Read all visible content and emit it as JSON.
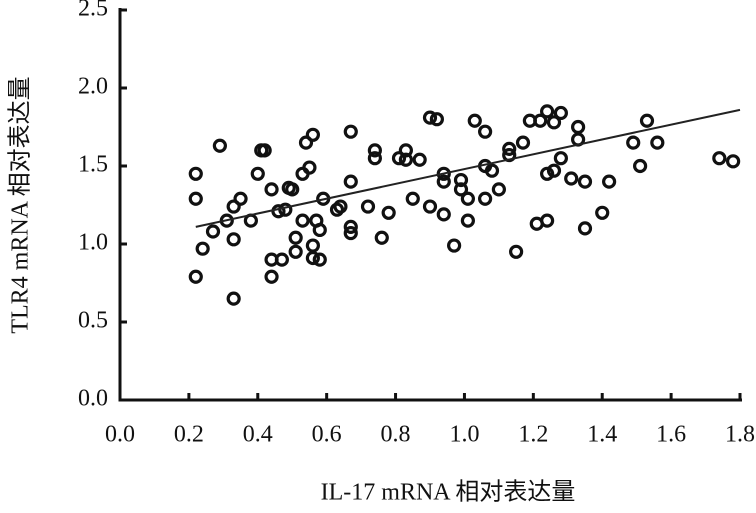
{
  "chart_data": {
    "type": "scatter",
    "x_label": "IL-17 mRNA 相对表达量",
    "y_label": "TLR4 mRNA 相对表达量",
    "xlim": [
      0,
      1.8
    ],
    "ylim": [
      0,
      2.5
    ],
    "xticks": [
      {
        "value": 0,
        "label": "0.0"
      },
      0.2,
      0.4,
      0.6,
      0.8,
      {
        "value": 1,
        "label": "1.0"
      },
      1.2,
      1.4,
      1.6,
      1.8
    ],
    "yticks": [
      {
        "value": 0,
        "label": "0.0"
      },
      0.5,
      {
        "value": 1,
        "label": "1.0"
      },
      1.5,
      {
        "value": 2,
        "label": "2.0"
      },
      2.5
    ],
    "color": "#111111",
    "x": [
      0.22,
      0.22,
      0.22,
      0.24,
      0.27,
      0.29,
      0.31,
      0.33,
      0.33,
      0.35,
      0.33,
      0.38,
      0.4,
      0.41,
      0.42,
      0.44,
      0.44,
      0.44,
      0.46,
      0.47,
      0.48,
      0.49,
      0.5,
      0.51,
      0.51,
      0.53,
      0.53,
      0.54,
      0.55,
      0.56,
      0.56,
      0.56,
      0.57,
      0.58,
      0.58,
      0.59,
      0.63,
      0.64,
      0.67,
      0.67,
      0.67,
      0.67,
      0.72,
      0.74,
      0.74,
      0.76,
      0.78,
      0.81,
      0.83,
      0.83,
      0.85,
      0.87,
      0.9,
      0.9,
      0.92,
      0.94,
      0.94,
      0.94,
      0.97,
      0.99,
      0.99,
      1.01,
      1.01,
      1.03,
      1.06,
      1.06,
      1.06,
      1.08,
      1.1,
      1.13,
      1.13,
      1.15,
      1.17,
      1.19,
      1.22,
      1.21,
      1.24,
      1.24,
      1.24,
      1.26,
      1.26,
      1.28,
      1.28,
      1.31,
      1.33,
      1.35,
      1.35,
      1.33,
      1.4,
      1.42,
      1.49,
      1.51,
      1.53,
      1.56,
      1.74,
      1.78
    ],
    "values": [
      1.45,
      1.29,
      0.79,
      0.97,
      1.08,
      1.63,
      1.15,
      1.24,
      1.03,
      1.29,
      0.65,
      1.15,
      1.45,
      1.6,
      1.6,
      1.35,
      0.9,
      0.79,
      1.21,
      0.9,
      1.22,
      1.36,
      1.35,
      0.95,
      1.04,
      1.45,
      1.15,
      1.65,
      1.49,
      1.7,
      0.99,
      0.91,
      1.15,
      1.09,
      0.9,
      1.29,
      1.22,
      1.24,
      1.72,
      1.4,
      1.11,
      1.07,
      1.24,
      1.6,
      1.55,
      1.04,
      1.2,
      1.55,
      1.6,
      1.54,
      1.29,
      1.54,
      1.24,
      1.81,
      1.8,
      1.45,
      1.4,
      1.19,
      0.99,
      1.41,
      1.35,
      1.29,
      1.15,
      1.79,
      1.29,
      1.72,
      1.5,
      1.47,
      1.35,
      1.61,
      1.57,
      0.95,
      1.65,
      1.79,
      1.79,
      1.13,
      1.85,
      1.15,
      1.45,
      1.78,
      1.47,
      1.55,
      1.84,
      1.42,
      1.67,
      1.1,
      1.4,
      1.75,
      1.2,
      1.4,
      1.65,
      1.5,
      1.79,
      1.65,
      1.55,
      1.53
    ],
    "trendline": {
      "x": [
        0.22,
        1.8
      ],
      "values": [
        1.11,
        1.86
      ]
    }
  }
}
